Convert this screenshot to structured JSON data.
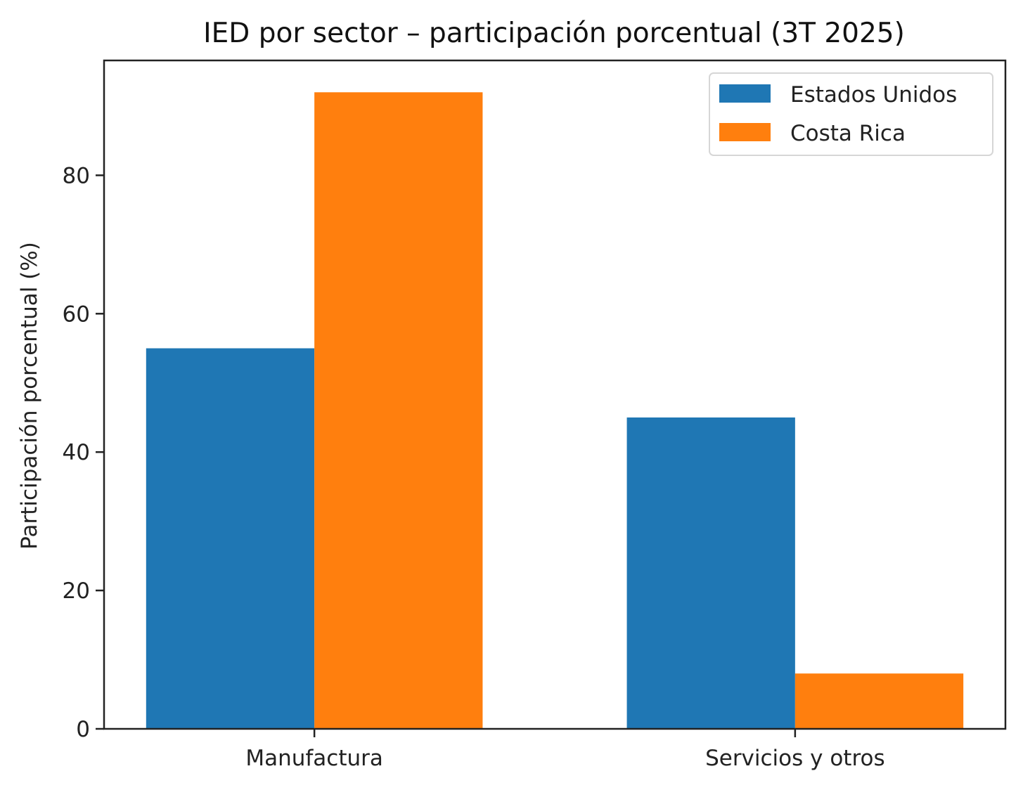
{
  "chart_data": {
    "type": "bar",
    "title": "IED por sector – participación porcentual (3T 2025)",
    "xlabel": "",
    "ylabel": "Participación porcentual (%)",
    "categories": [
      "Manufactura",
      "Servicios y otros"
    ],
    "series": [
      {
        "name": "Estados Unidos",
        "color": "#1f77b4",
        "values": [
          55,
          45
        ]
      },
      {
        "name": "Costa Rica",
        "color": "#ff7f0e",
        "values": [
          92,
          8
        ]
      }
    ],
    "ylim": [
      0,
      96.6
    ],
    "yticks": [
      0,
      20,
      40,
      60,
      80
    ],
    "ytick_labels": [
      "0",
      "20",
      "40",
      "60",
      "80"
    ],
    "grid": false,
    "legend": {
      "position": "top-right",
      "entries": [
        "Estados Unidos",
        "Costa Rica"
      ]
    }
  }
}
